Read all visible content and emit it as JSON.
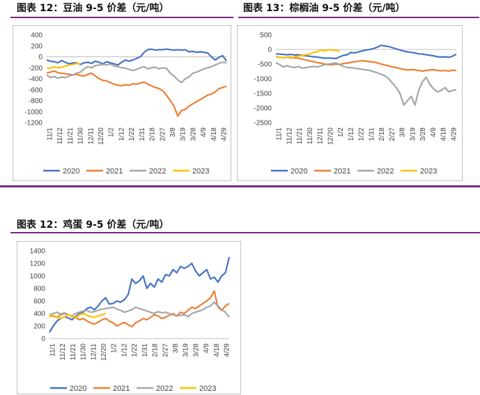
{
  "panels": [
    {
      "title": "图表 12：豆油 9-5 价差（元/吨）",
      "chart_data": {
        "type": "line",
        "title": "图表 12：豆油 9-5 价差（元/吨）",
        "ylim": [
          -1200,
          400
        ],
        "yticks": [
          400,
          200,
          0,
          -200,
          -400,
          -600,
          -800,
          -1000,
          -1200
        ],
        "xticks": [
          "11/1",
          "11/12",
          "11/21",
          "11/30",
          "12/11",
          "12/20",
          "1/2",
          "1/12",
          "1/22",
          "1/31",
          "2/18",
          "2/27",
          "3/8",
          "3/19",
          "3/28",
          "4/9",
          "4/18",
          "4/29"
        ],
        "grid": false,
        "legend": "bottom",
        "series": [
          {
            "name": "2020",
            "color": "#4472c4",
            "values": [
              -60,
              -80,
              -90,
              -110,
              -70,
              -100,
              -130,
              -110,
              -110,
              -140,
              -110,
              -100,
              -120,
              -80,
              -100,
              -130,
              -90,
              -110,
              -130,
              -150,
              -100,
              -60,
              -80,
              -60,
              -30,
              0,
              80,
              130,
              140,
              120,
              130,
              130,
              140,
              130,
              120,
              130,
              120,
              130,
              90,
              100,
              80,
              90,
              80,
              70,
              0,
              -60,
              -10,
              20,
              -80
            ]
          },
          {
            "name": "2021",
            "color": "#ed7d31",
            "values": [
              -300,
              -280,
              -260,
              -290,
              -300,
              -310,
              -320,
              -330,
              -320,
              -340,
              -350,
              -320,
              -300,
              -350,
              -400,
              -430,
              -440,
              -470,
              -500,
              -520,
              -530,
              -510,
              -520,
              -490,
              -500,
              -480,
              -460,
              -500,
              -530,
              -560,
              -580,
              -620,
              -700,
              -800,
              -900,
              -1080,
              -980,
              -960,
              -900,
              -860,
              -820,
              -780,
              -740,
              -700,
              -680,
              -640,
              -580,
              -560,
              -540
            ]
          },
          {
            "name": "2022",
            "color": "#a5a5a5",
            "values": [
              -330,
              -380,
              -360,
              -390,
              -370,
              -380,
              -350,
              -330,
              -300,
              -280,
              -220,
              -180,
              -200,
              -160,
              -150,
              -140,
              -150,
              -130,
              -170,
              -180,
              -200,
              -210,
              -230,
              -250,
              -230,
              -200,
              -180,
              -220,
              -200,
              -190,
              -220,
              -200,
              -210,
              -300,
              -350,
              -420,
              -470,
              -400,
              -370,
              -300,
              -280,
              -250,
              -220,
              -200,
              -180,
              -150,
              -120,
              -100,
              -110
            ]
          },
          {
            "name": "2023",
            "color": "#ffc000",
            "values": [
              -200,
              -210,
              -180,
              -200,
              -190,
              -170,
              -150,
              -140,
              -120,
              -130
            ]
          }
        ]
      }
    },
    {
      "title": "图表 13：棕榈油 9-5 价差（元/吨）",
      "chart_data": {
        "type": "line",
        "title": "图表 13：棕榈油 9-5 价差（元/吨）",
        "ylim": [
          -2500,
          500
        ],
        "yticks": [
          500,
          0,
          -500,
          -1000,
          -1500,
          -2000,
          -2500
        ],
        "xticks": [
          "11/1",
          "11/12",
          "11/21",
          "11/30",
          "12/11",
          "12/20",
          "1/2",
          "1/12",
          "1/22",
          "1/31",
          "2/18",
          "2/27",
          "3/8",
          "3/19",
          "3/28",
          "4/9",
          "4/18",
          "4/29"
        ],
        "grid": false,
        "legend": "bottom",
        "series": [
          {
            "name": "2020",
            "color": "#4472c4",
            "values": [
              -150,
              -160,
              -170,
              -180,
              -170,
              -190,
              -180,
              -200,
              -220,
              -230,
              -250,
              -260,
              -280,
              -300,
              -290,
              -300,
              -310,
              -250,
              -200,
              -180,
              -100,
              -120,
              -80,
              -50,
              -20,
              0,
              30,
              80,
              140,
              120,
              100,
              60,
              20,
              -20,
              -60,
              -80,
              -100,
              -120,
              -150,
              -160,
              -180,
              -200,
              -220,
              -250,
              -260,
              -250,
              -270,
              -230,
              -160
            ]
          },
          {
            "name": "2021",
            "color": "#ed7d31",
            "values": [
              -250,
              -270,
              -280,
              -260,
              -270,
              -290,
              -300,
              -330,
              -360,
              -390,
              -420,
              -450,
              -470,
              -500,
              -520,
              -520,
              -500,
              -510,
              -480,
              -470,
              -440,
              -420,
              -400,
              -380,
              -400,
              -420,
              -430,
              -460,
              -500,
              -530,
              -560,
              -600,
              -620,
              -650,
              -680,
              -700,
              -690,
              -700,
              -720,
              -740,
              -720,
              -700,
              -690,
              -720,
              -730,
              -720,
              -740,
              -710,
              -720
            ]
          },
          {
            "name": "2022",
            "color": "#a5a5a5",
            "values": [
              -450,
              -520,
              -600,
              -550,
              -600,
              -620,
              -580,
              -640,
              -620,
              -600,
              -580,
              -600,
              -560,
              -520,
              -500,
              -480,
              -460,
              -520,
              -580,
              -620,
              -620,
              -640,
              -660,
              -680,
              -700,
              -720,
              -760,
              -800,
              -850,
              -900,
              -1000,
              -1150,
              -1300,
              -1500,
              -1900,
              -1750,
              -1600,
              -1900,
              -1400,
              -1100,
              -950,
              -1200,
              -1350,
              -1450,
              -1400,
              -1300,
              -1450,
              -1400,
              -1380
            ]
          },
          {
            "name": "2023",
            "color": "#ffc000",
            "values": [
              -250,
              -270,
              -280,
              -260,
              -300,
              -250,
              -230,
              -200,
              -180,
              -150,
              -100,
              -80,
              -20,
              -60,
              0,
              -30,
              -20,
              -70
            ]
          }
        ]
      }
    },
    {
      "title": "图表 12：鸡蛋 9-5 价差（元/吨）",
      "chart_data": {
        "type": "line",
        "title": "图表 12：鸡蛋 9-5 价差（元/吨）",
        "ylim": [
          0,
          1400
        ],
        "yticks": [
          1400,
          1200,
          1000,
          800,
          600,
          400,
          200,
          0
        ],
        "xticks": [
          "11/1",
          "11/12",
          "11/21",
          "11/30",
          "12/11",
          "12/20",
          "1/2",
          "1/12",
          "1/22",
          "1/31",
          "2/18",
          "2/27",
          "3/8",
          "3/19",
          "3/28",
          "4/9",
          "4/18",
          "4/29"
        ],
        "grid": false,
        "legend": "bottom",
        "series": [
          {
            "name": "2020",
            "color": "#4472c4",
            "values": [
              100,
              200,
              280,
              320,
              350,
              330,
              300,
              350,
              400,
              420,
              480,
              500,
              460,
              520,
              600,
              650,
              550,
              560,
              600,
              580,
              620,
              700,
              950,
              880,
              920,
              1000,
              800,
              880,
              820,
              950,
              900,
              1020,
              1000,
              1100,
              1050,
              1150,
              1120,
              1150,
              1200,
              1080,
              1000,
              1050,
              1100,
              950,
              980,
              900,
              1000,
              1050,
              1300
            ]
          },
          {
            "name": "2021",
            "color": "#ed7d31",
            "values": [
              350,
              360,
              340,
              380,
              400,
              380,
              350,
              330,
              300,
              320,
              280,
              250,
              230,
              260,
              300,
              320,
              280,
              250,
              200,
              230,
              260,
              220,
              190,
              250,
              280,
              320,
              300,
              340,
              380,
              360,
              320,
              340,
              370,
              400,
              360,
              420,
              400,
              450,
              500,
              480,
              520,
              560,
              600,
              650,
              760,
              500,
              450,
              520,
              560
            ]
          },
          {
            "name": "2022",
            "color": "#a5a5a5",
            "values": [
              380,
              400,
              420,
              390,
              410,
              380,
              360,
              400,
              420,
              440,
              450,
              420,
              430,
              450,
              470,
              480,
              490,
              500,
              470,
              450,
              420,
              440,
              460,
              500,
              480,
              460,
              440,
              420,
              400,
              430,
              410,
              420,
              400,
              380,
              360,
              370,
              380,
              350,
              400,
              420,
              440,
              460,
              500,
              520,
              580,
              520,
              460,
              420,
              340
            ]
          },
          {
            "name": "2023",
            "color": "#ffc000",
            "values": [
              350,
              370,
              340,
              320,
              350,
              380,
              360,
              330,
              380,
              400,
              370,
              350,
              340,
              360,
              380,
              400
            ]
          }
        ]
      }
    }
  ]
}
